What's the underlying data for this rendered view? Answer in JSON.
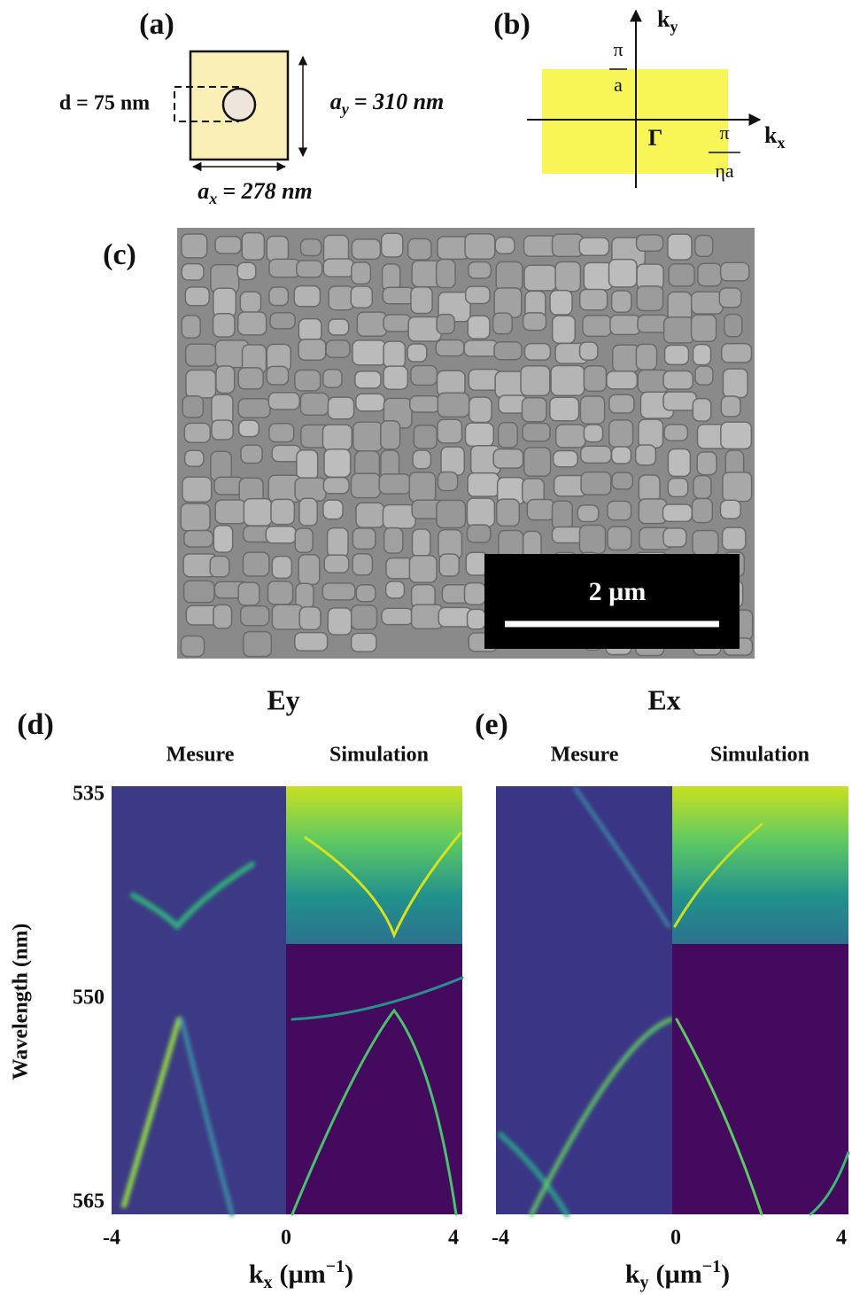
{
  "panel_a": {
    "label": "(a)",
    "d_label": "d = 75 nm",
    "ay_label": {
      "symbol": "a",
      "subscript": "y",
      "rest": "= 310 nm"
    },
    "ax_label": {
      "symbol": "a",
      "subscript": "x",
      "rest": "= 278 nm"
    }
  },
  "panel_b": {
    "label": "(b)",
    "ky": {
      "symbol": "k",
      "subscript": "y"
    },
    "kx": {
      "symbol": "k",
      "subscript": "x"
    },
    "pi_a": {
      "numerator": "π",
      "denominator": "a"
    },
    "gamma": "Γ",
    "pi_eta_a": {
      "numerator": "π",
      "denominator": "ηa"
    }
  },
  "panel_c": {
    "label": "(c)",
    "scale_bar": "2 µm"
  },
  "panel_d": {
    "label": "(d)",
    "title": "Ey",
    "left_title": "Mesure",
    "right_title": "Simulation",
    "y_label": "Wavelength (nm)",
    "yticks": [
      535,
      550,
      565
    ],
    "xticks": [
      -4,
      0,
      4
    ],
    "x_label": {
      "symbol": "k",
      "subscript": "x",
      "rest": "(µm",
      "superscript": "−1",
      "close": ")"
    }
  },
  "panel_e": {
    "label": "(e)",
    "title": "Ex",
    "left_title": "Mesure",
    "right_title": "Simulation",
    "xticks": [
      -4,
      0,
      4
    ],
    "x_label": {
      "symbol": "k",
      "subscript": "y",
      "rest": "(µm",
      "superscript": "−1",
      "close": ")"
    }
  }
}
